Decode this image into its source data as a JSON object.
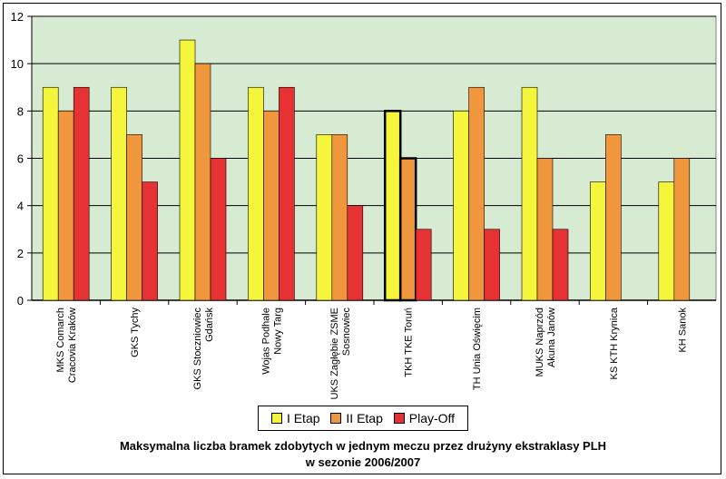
{
  "chart_data": {
    "type": "bar",
    "categories": [
      [
        "MKS Comarch",
        "Cracovia Kraków"
      ],
      [
        "GKS Tychy"
      ],
      [
        "GKS Stoczniowiec",
        "Gdańsk"
      ],
      [
        "Wojas Podhale",
        "Nowy Targ"
      ],
      [
        "UKS Zagłębie ZSME",
        "Sosnowiec"
      ],
      [
        "TKH TKE Toruń"
      ],
      [
        "TH Unia Oświęcim"
      ],
      [
        "MUKS Naprzód",
        "Akuna Janów"
      ],
      [
        "KS KTH Krynica"
      ],
      [
        "KH Sanok"
      ]
    ],
    "series": [
      {
        "name": "I Etap",
        "color": "#f5f53c",
        "values": [
          9,
          9,
          11,
          9,
          7,
          8,
          8,
          9,
          5,
          5
        ]
      },
      {
        "name": "II Etap",
        "color": "#f0963c",
        "values": [
          8,
          7,
          10,
          8,
          7,
          6,
          9,
          6,
          7,
          6
        ]
      },
      {
        "name": "Play-Off",
        "color": "#e63232",
        "values": [
          9,
          5,
          6,
          9,
          4,
          3,
          3,
          3,
          null,
          null
        ]
      }
    ],
    "highlighted_category": 5,
    "ylim": [
      0,
      12
    ],
    "yticks": [
      0,
      2,
      4,
      6,
      8,
      10,
      12
    ],
    "grid": true,
    "plot_background": "#d7ebd2",
    "legend_position": "bottom",
    "title_line1": "Maksymalna liczba bramek zdobytych w jednym meczu przez drużyny ekstraklasy PLH",
    "title_line2": "w sezonie 2006/2007"
  }
}
